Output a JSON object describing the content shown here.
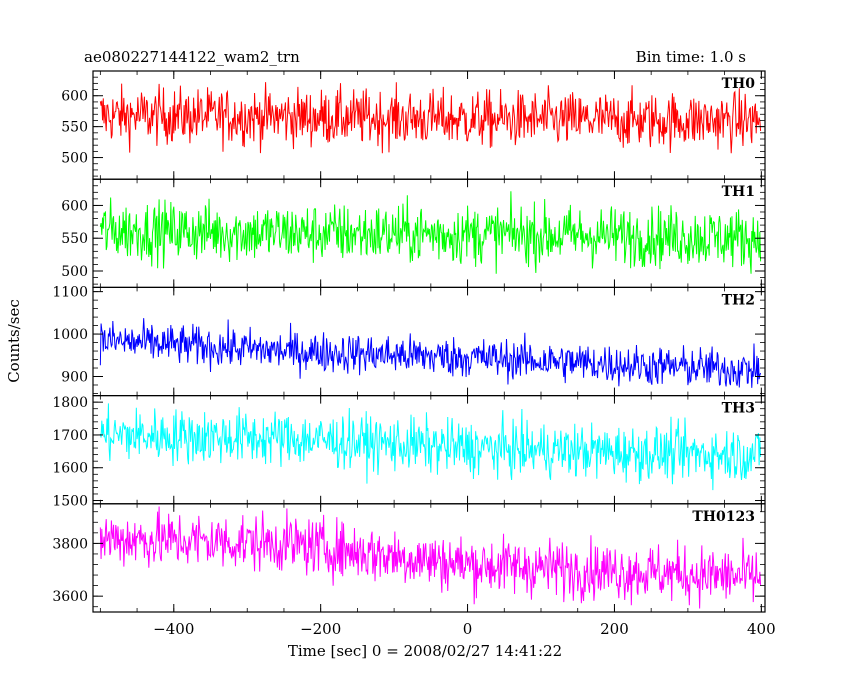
{
  "header": {
    "title": "ae080227144122_wam2_trn",
    "bin_time": "Bin time: 1.0 s"
  },
  "chart_data": {
    "type": "line",
    "ylabel": "Counts/sec",
    "xlabel": "Time [sec] 0 = 2008/02/27 14:41:22",
    "xlim": [
      -510,
      405
    ],
    "x_ticks": [
      -400,
      -200,
      0,
      200,
      400
    ],
    "x_tick_labels": [
      "−400",
      "−200",
      "0",
      "200",
      "400"
    ],
    "x_range_data": [
      -500,
      399
    ],
    "bin_time_s": 1.0,
    "panels": [
      {
        "name": "TH0",
        "color": "#ff0000",
        "ylim": [
          465,
          640
        ],
        "y_ticks": [
          500,
          550,
          600
        ],
        "y_tick_labels": [
          "500",
          "550",
          "600"
        ],
        "baseline": [
          [
            -500,
            568
          ],
          [
            -250,
            566
          ],
          [
            0,
            562
          ],
          [
            250,
            560
          ],
          [
            399,
            560
          ]
        ],
        "spread": 23
      },
      {
        "name": "TH1",
        "color": "#00ff00",
        "ylim": [
          475,
          640
        ],
        "y_ticks": [
          500,
          550,
          600
        ],
        "y_tick_labels": [
          "500",
          "550",
          "600"
        ],
        "baseline": [
          [
            -500,
            562
          ],
          [
            -250,
            558
          ],
          [
            0,
            556
          ],
          [
            250,
            553
          ],
          [
            399,
            550
          ]
        ],
        "spread": 23
      },
      {
        "name": "TH2",
        "color": "#0000ff",
        "ylim": [
          855,
          1110
        ],
        "y_ticks": [
          900,
          1000,
          1100
        ],
        "y_tick_labels": [
          "900",
          "1000",
          "1100"
        ],
        "baseline": [
          [
            -500,
            985
          ],
          [
            -250,
            960
          ],
          [
            0,
            945
          ],
          [
            250,
            925
          ],
          [
            399,
            915
          ]
        ],
        "spread": 24
      },
      {
        "name": "TH3",
        "color": "#00ffff",
        "ylim": [
          1490,
          1820
        ],
        "y_ticks": [
          1500,
          1600,
          1700,
          1800
        ],
        "y_tick_labels": [
          "1500",
          "1600",
          "1700",
          "1800"
        ],
        "baseline": [
          [
            -500,
            1700
          ],
          [
            -250,
            1690
          ],
          [
            0,
            1660
          ],
          [
            250,
            1645
          ],
          [
            399,
            1640
          ]
        ],
        "spread": 42
      },
      {
        "name": "TH0123",
        "color": "#ff00ff",
        "ylim": [
          3540,
          3950
        ],
        "y_ticks": [
          3600,
          3800
        ],
        "y_tick_labels": [
          "3600",
          "3800"
        ],
        "baseline": [
          [
            -500,
            3820
          ],
          [
            -250,
            3800
          ],
          [
            0,
            3720
          ],
          [
            250,
            3690
          ],
          [
            399,
            3670
          ]
        ],
        "spread": 55
      }
    ]
  }
}
